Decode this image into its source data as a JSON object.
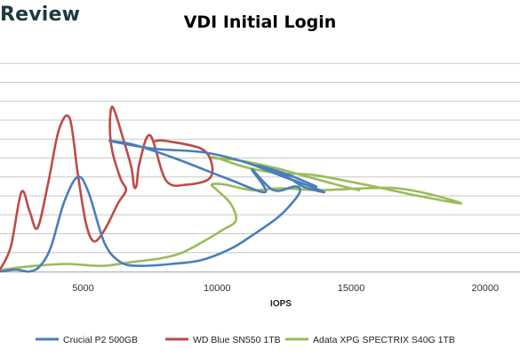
{
  "brand": "Review",
  "chart_data": {
    "type": "line",
    "title": "VDI Initial Login",
    "xlabel": "IOPS",
    "ylabel": "",
    "xlim": [
      1900,
      21300
    ],
    "ylim": [
      0,
      12
    ],
    "x_ticks": [
      5000,
      10000,
      15000,
      20000
    ],
    "x_tick_labels": [
      "5000",
      "10000",
      "15000",
      "20000"
    ],
    "y_gridlines": [
      1,
      2,
      3,
      4,
      5,
      6,
      7,
      8,
      9,
      10,
      11
    ],
    "grid": true,
    "legend_position": "bottom",
    "series": [
      {
        "name": "Crucial P2 500GB",
        "color": "#4a7ebb",
        "points": [
          [
            1900,
            0.0
          ],
          [
            2500,
            0.1
          ],
          [
            3000,
            0.0
          ],
          [
            3400,
            0.3
          ],
          [
            3800,
            1.3
          ],
          [
            4300,
            3.7
          ],
          [
            4800,
            5.0
          ],
          [
            5200,
            4.2
          ],
          [
            5800,
            1.5
          ],
          [
            6400,
            0.5
          ],
          [
            7100,
            0.3
          ],
          [
            8300,
            0.4
          ],
          [
            9400,
            0.6
          ],
          [
            10500,
            1.2
          ],
          [
            11300,
            1.9
          ],
          [
            12300,
            2.9
          ],
          [
            12900,
            3.8
          ],
          [
            13100,
            4.3
          ],
          [
            12900,
            4.5
          ],
          [
            12100,
            4.3
          ],
          [
            11300,
            5.4
          ],
          [
            11800,
            4.2
          ],
          [
            10400,
            4.9
          ],
          [
            8400,
            6.0
          ],
          [
            6900,
            6.7
          ],
          [
            6000,
            6.9
          ],
          [
            7600,
            6.5
          ],
          [
            9500,
            6.3
          ],
          [
            11000,
            5.8
          ],
          [
            12500,
            5.0
          ],
          [
            13100,
            4.7
          ],
          [
            14000,
            4.2
          ],
          [
            13200,
            4.5
          ],
          [
            12500,
            5.1
          ],
          [
            11500,
            5.6
          ],
          [
            12500,
            5.2
          ],
          [
            13700,
            4.5
          ]
        ]
      },
      {
        "name": "WD Blue SN550 1TB",
        "color": "#be4b48",
        "points": [
          [
            1900,
            0.1
          ],
          [
            2300,
            1.3
          ],
          [
            2700,
            4.2
          ],
          [
            3000,
            3.2
          ],
          [
            3300,
            2.3
          ],
          [
            3700,
            4.7
          ],
          [
            4100,
            7.5
          ],
          [
            4500,
            8.1
          ],
          [
            4800,
            5.2
          ],
          [
            5100,
            2.6
          ],
          [
            5400,
            1.6
          ],
          [
            5800,
            2.2
          ],
          [
            6300,
            3.6
          ],
          [
            6600,
            4.3
          ],
          [
            6400,
            4.9
          ],
          [
            6100,
            6.3
          ],
          [
            6000,
            7.6
          ],
          [
            6100,
            8.7
          ],
          [
            6500,
            7.0
          ],
          [
            6800,
            5.5
          ],
          [
            6900,
            4.5
          ],
          [
            7000,
            4.6
          ],
          [
            7100,
            5.7
          ],
          [
            7500,
            7.2
          ],
          [
            8100,
            4.8
          ],
          [
            8900,
            4.6
          ],
          [
            9700,
            4.9
          ],
          [
            9800,
            5.7
          ],
          [
            9400,
            6.5
          ],
          [
            8100,
            6.9
          ],
          [
            7700,
            6.9
          ]
        ]
      },
      {
        "name": "Adata XPG SPECTRIX S40G 1TB",
        "color": "#9bbb59",
        "points": [
          [
            2000,
            0.1
          ],
          [
            3200,
            0.3
          ],
          [
            4400,
            0.4
          ],
          [
            5700,
            0.3
          ],
          [
            6800,
            0.5
          ],
          [
            7900,
            0.7
          ],
          [
            8700,
            1.0
          ],
          [
            9500,
            1.6
          ],
          [
            10200,
            2.2
          ],
          [
            10700,
            2.7
          ],
          [
            10500,
            3.6
          ],
          [
            10000,
            4.3
          ],
          [
            9800,
            4.6
          ],
          [
            10300,
            4.6
          ],
          [
            11300,
            4.3
          ],
          [
            12400,
            4.4
          ],
          [
            13800,
            4.3
          ],
          [
            15500,
            4.4
          ],
          [
            16700,
            4.4
          ],
          [
            17900,
            4.1
          ],
          [
            19100,
            3.6
          ],
          [
            17500,
            4.0
          ],
          [
            15500,
            4.6
          ],
          [
            13600,
            5.1
          ],
          [
            12300,
            5.2
          ],
          [
            11100,
            5.5
          ],
          [
            10000,
            6.0
          ],
          [
            9800,
            6.0
          ],
          [
            10700,
            5.9
          ],
          [
            12100,
            5.5
          ],
          [
            13400,
            5.0
          ],
          [
            14700,
            4.5
          ],
          [
            15300,
            4.3
          ]
        ]
      }
    ]
  }
}
